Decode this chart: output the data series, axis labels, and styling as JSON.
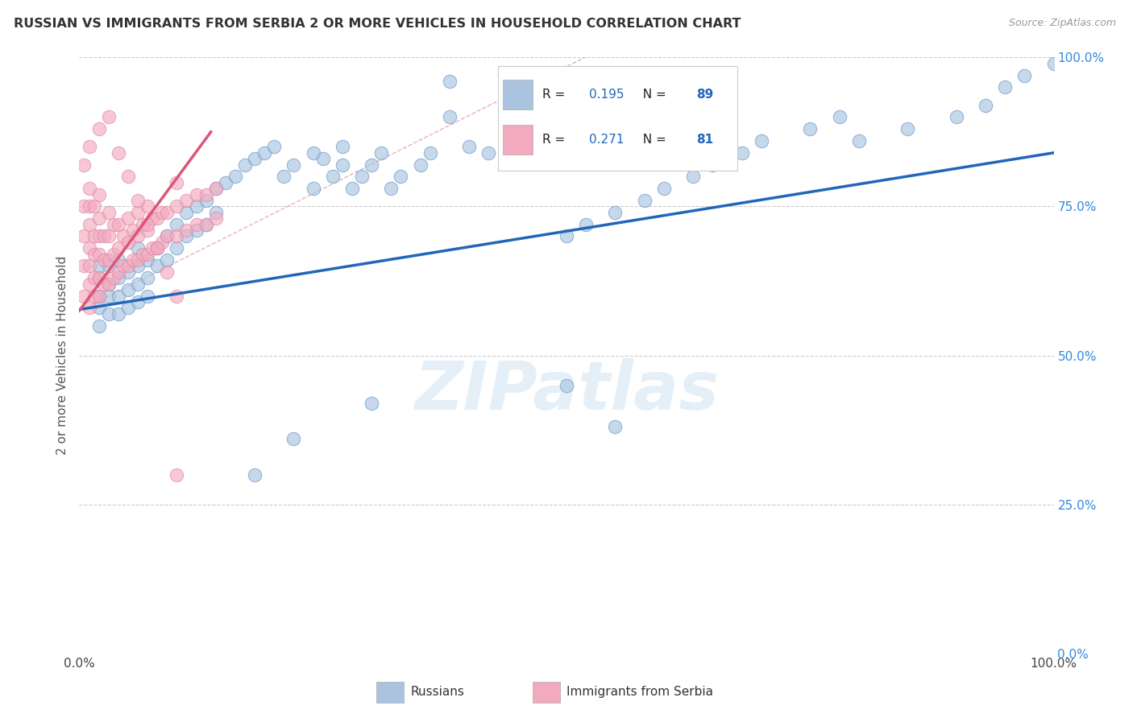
{
  "title": "RUSSIAN VS IMMIGRANTS FROM SERBIA 2 OR MORE VEHICLES IN HOUSEHOLD CORRELATION CHART",
  "source": "Source: ZipAtlas.com",
  "ylabel": "2 or more Vehicles in Household",
  "ytick_values": [
    0.0,
    0.25,
    0.5,
    0.75,
    1.0
  ],
  "ytick_labels": [
    "0.0%",
    "25.0%",
    "50.0%",
    "75.0%",
    "100.0%"
  ],
  "watermark": "ZIPatlas",
  "legend_entries": [
    {
      "label": "Russians",
      "color": "#aac4e0",
      "R": "0.195",
      "N": "89"
    },
    {
      "label": "Immigrants from Serbia",
      "color": "#f4aabe",
      "R": "0.271",
      "N": "81"
    }
  ],
  "blue_scatter_color": "#aac4e0",
  "pink_scatter_color": "#f4aabe",
  "blue_line_color": "#2266bb",
  "pink_line_color": "#dd5577",
  "diagonal_color": "#ddbbbb",
  "grid_color": "#cccccc",
  "title_color": "#333333",
  "right_tick_color": "#3388dd",
  "background_color": "#ffffff",
  "rus_x": [
    0.02,
    0.02,
    0.02,
    0.02,
    0.02,
    0.03,
    0.03,
    0.03,
    0.03,
    0.04,
    0.04,
    0.04,
    0.04,
    0.05,
    0.05,
    0.05,
    0.06,
    0.06,
    0.06,
    0.06,
    0.07,
    0.07,
    0.07,
    0.08,
    0.08,
    0.09,
    0.09,
    0.1,
    0.1,
    0.11,
    0.11,
    0.12,
    0.12,
    0.13,
    0.13,
    0.14,
    0.14,
    0.15,
    0.16,
    0.17,
    0.18,
    0.19,
    0.2,
    0.21,
    0.22,
    0.24,
    0.24,
    0.25,
    0.26,
    0.27,
    0.27,
    0.28,
    0.29,
    0.3,
    0.31,
    0.32,
    0.33,
    0.35,
    0.36,
    0.38,
    0.38,
    0.4,
    0.42,
    0.44,
    0.46,
    0.48,
    0.5,
    0.52,
    0.55,
    0.58,
    0.6,
    0.63,
    0.65,
    0.68,
    0.7,
    0.75,
    0.78,
    0.8,
    0.85,
    0.9,
    0.93,
    0.95,
    0.97,
    1.0,
    0.5,
    0.55,
    0.3,
    0.22,
    0.18
  ],
  "rus_y": [
    0.6,
    0.63,
    0.65,
    0.58,
    0.55,
    0.62,
    0.65,
    0.6,
    0.57,
    0.63,
    0.6,
    0.66,
    0.57,
    0.64,
    0.61,
    0.58,
    0.65,
    0.62,
    0.59,
    0.68,
    0.66,
    0.63,
    0.6,
    0.68,
    0.65,
    0.7,
    0.66,
    0.72,
    0.68,
    0.74,
    0.7,
    0.75,
    0.71,
    0.76,
    0.72,
    0.78,
    0.74,
    0.79,
    0.8,
    0.82,
    0.83,
    0.84,
    0.85,
    0.8,
    0.82,
    0.84,
    0.78,
    0.83,
    0.8,
    0.85,
    0.82,
    0.78,
    0.8,
    0.82,
    0.84,
    0.78,
    0.8,
    0.82,
    0.84,
    0.9,
    0.96,
    0.85,
    0.84,
    0.86,
    0.85,
    0.87,
    0.7,
    0.72,
    0.74,
    0.76,
    0.78,
    0.8,
    0.82,
    0.84,
    0.86,
    0.88,
    0.9,
    0.86,
    0.88,
    0.9,
    0.92,
    0.95,
    0.97,
    0.99,
    0.45,
    0.38,
    0.42,
    0.36,
    0.3
  ],
  "ser_x": [
    0.005,
    0.005,
    0.005,
    0.005,
    0.01,
    0.01,
    0.01,
    0.01,
    0.01,
    0.01,
    0.01,
    0.015,
    0.015,
    0.015,
    0.015,
    0.015,
    0.02,
    0.02,
    0.02,
    0.02,
    0.02,
    0.02,
    0.025,
    0.025,
    0.025,
    0.03,
    0.03,
    0.03,
    0.03,
    0.035,
    0.035,
    0.035,
    0.04,
    0.04,
    0.04,
    0.045,
    0.045,
    0.05,
    0.05,
    0.05,
    0.055,
    0.055,
    0.06,
    0.06,
    0.06,
    0.065,
    0.065,
    0.07,
    0.07,
    0.07,
    0.075,
    0.075,
    0.08,
    0.08,
    0.085,
    0.085,
    0.09,
    0.09,
    0.1,
    0.1,
    0.1,
    0.11,
    0.11,
    0.12,
    0.12,
    0.13,
    0.13,
    0.14,
    0.14,
    0.005,
    0.01,
    0.02,
    0.03,
    0.04,
    0.05,
    0.06,
    0.07,
    0.08,
    0.09,
    0.1,
    0.1
  ],
  "ser_y": [
    0.6,
    0.65,
    0.7,
    0.75,
    0.58,
    0.62,
    0.65,
    0.68,
    0.72,
    0.75,
    0.78,
    0.6,
    0.63,
    0.67,
    0.7,
    0.75,
    0.6,
    0.63,
    0.67,
    0.7,
    0.73,
    0.77,
    0.62,
    0.66,
    0.7,
    0.62,
    0.66,
    0.7,
    0.74,
    0.63,
    0.67,
    0.72,
    0.64,
    0.68,
    0.72,
    0.65,
    0.7,
    0.65,
    0.69,
    0.73,
    0.66,
    0.71,
    0.66,
    0.7,
    0.74,
    0.67,
    0.72,
    0.67,
    0.71,
    0.75,
    0.68,
    0.73,
    0.68,
    0.73,
    0.69,
    0.74,
    0.7,
    0.74,
    0.7,
    0.75,
    0.79,
    0.71,
    0.76,
    0.72,
    0.77,
    0.72,
    0.77,
    0.73,
    0.78,
    0.82,
    0.85,
    0.88,
    0.9,
    0.84,
    0.8,
    0.76,
    0.72,
    0.68,
    0.64,
    0.6,
    0.3
  ]
}
